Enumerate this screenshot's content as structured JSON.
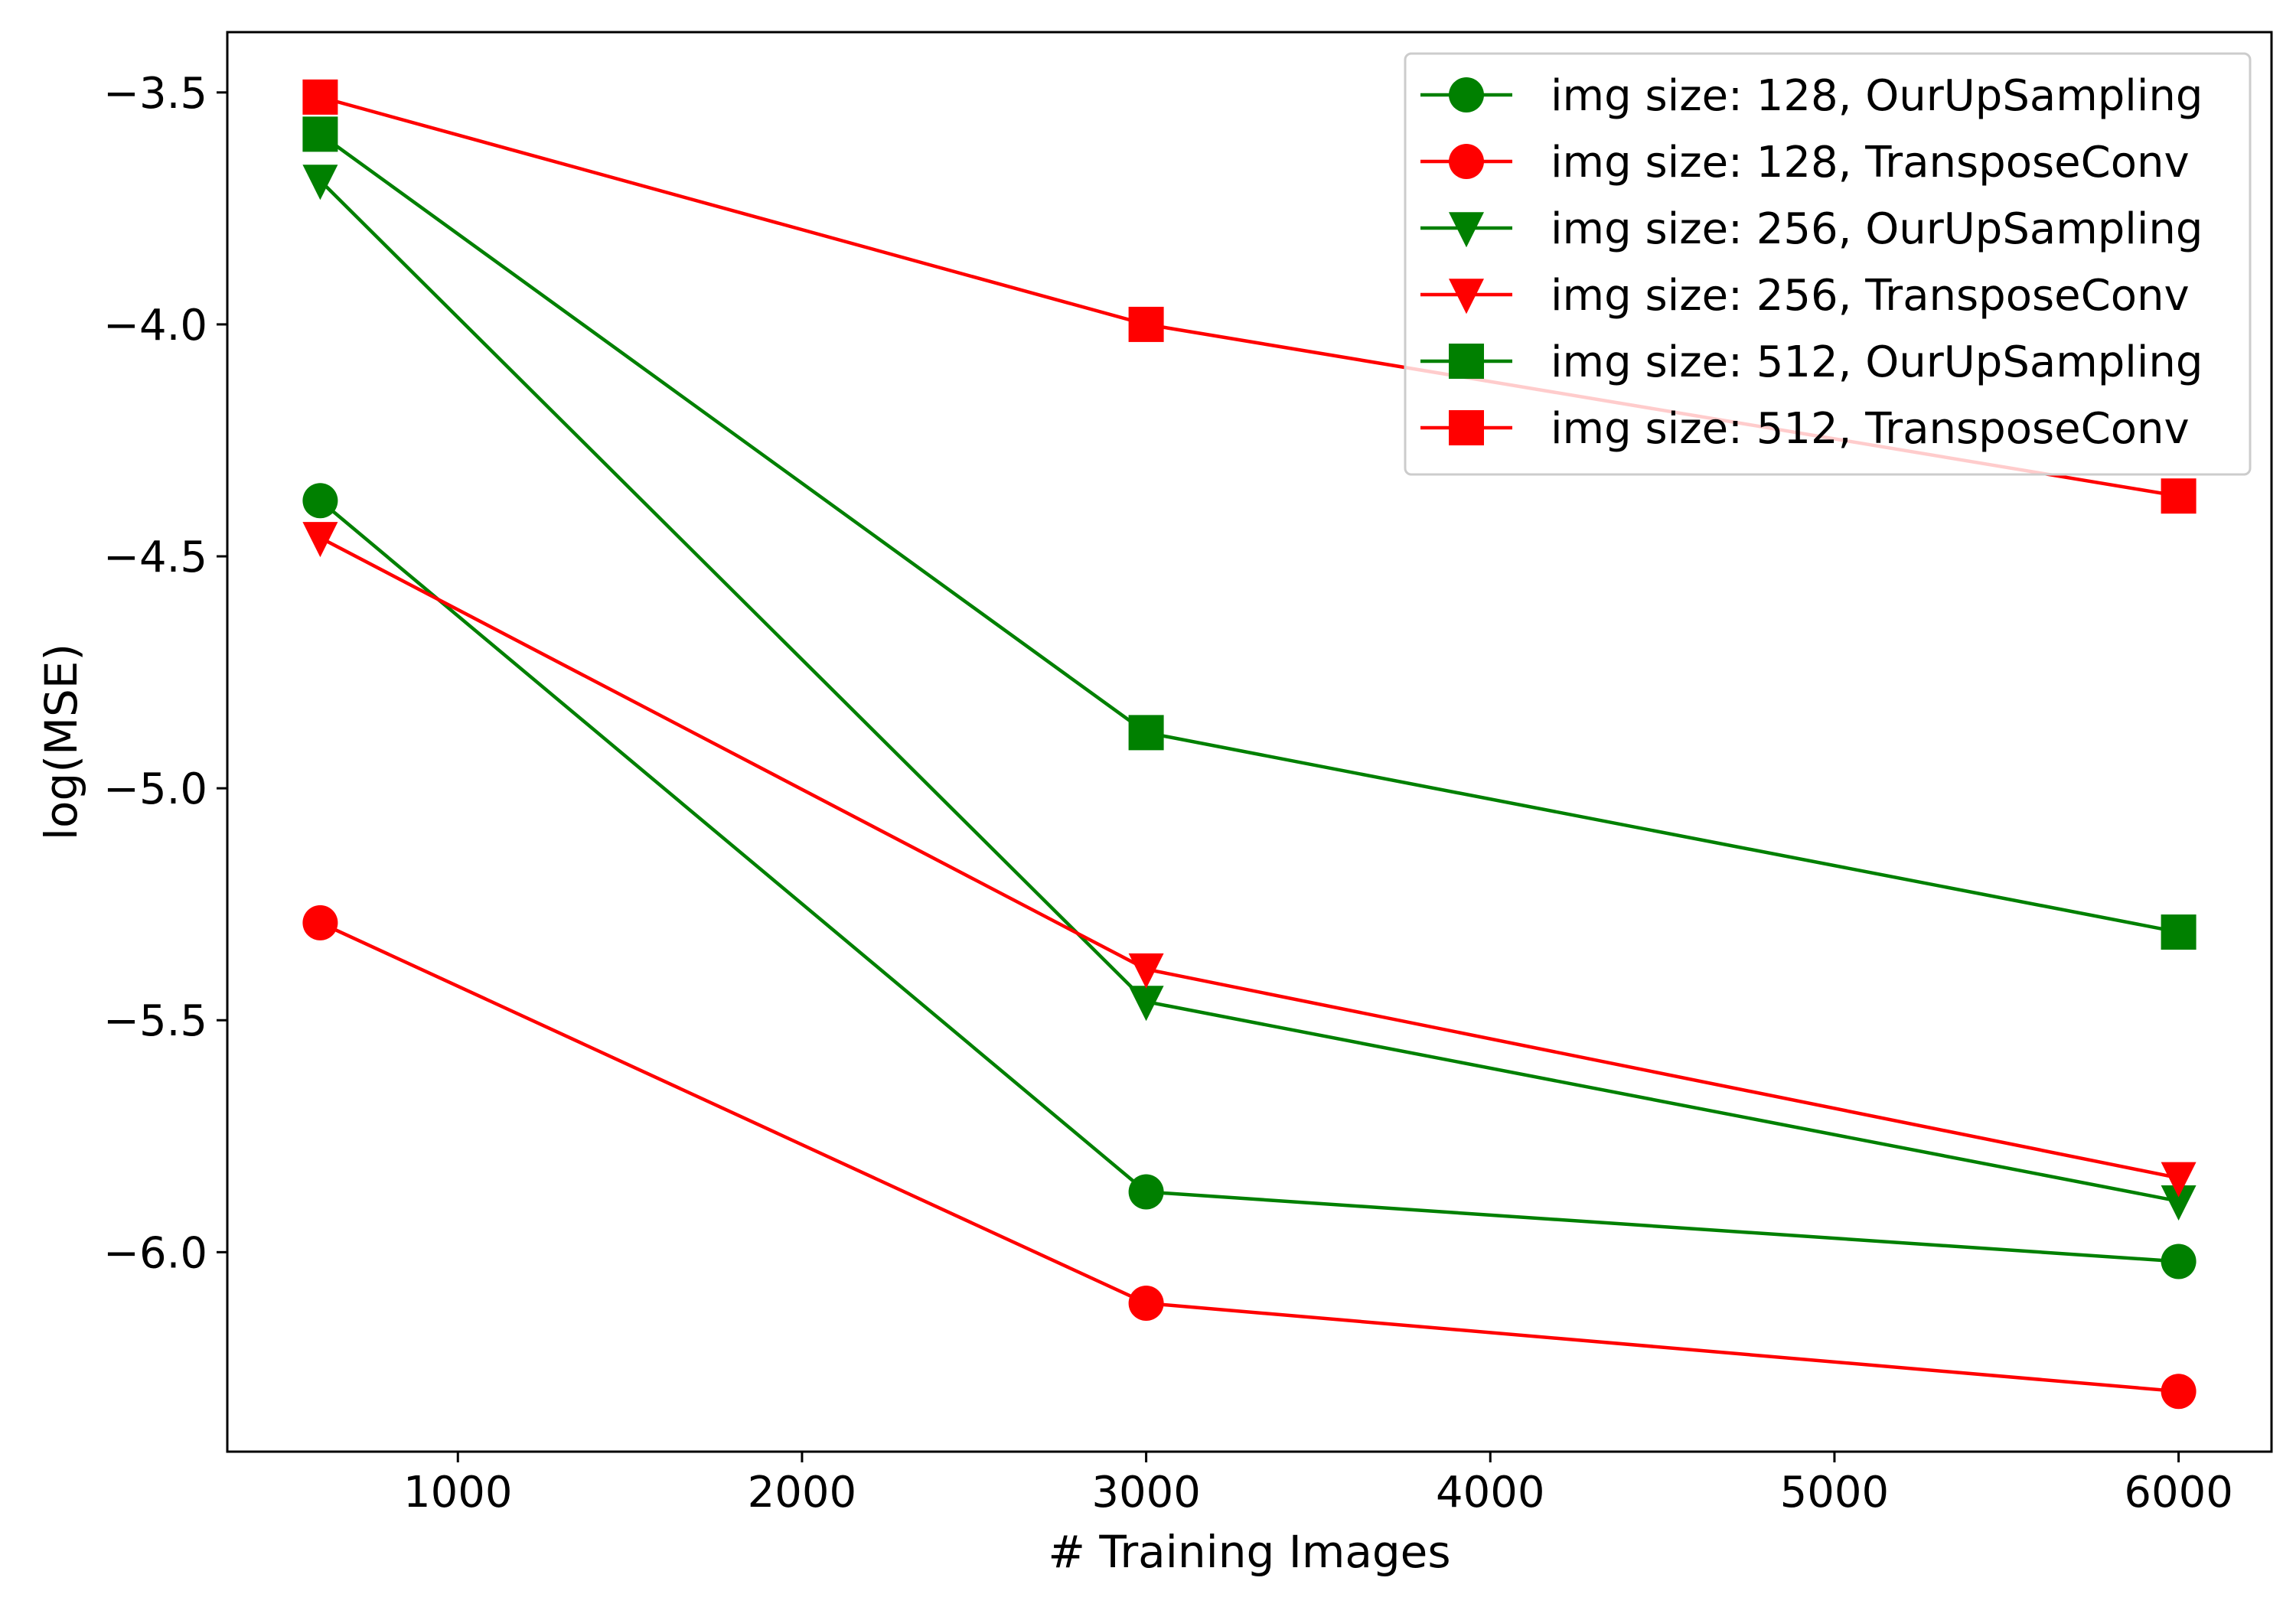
{
  "chart_data": {
    "type": "line",
    "xlabel": "# Training Images",
    "ylabel": "log(MSE)",
    "xlim": [
      330,
      6270
    ],
    "ylim": [
      -6.43,
      -3.37
    ],
    "xticks": [
      1000,
      2000,
      3000,
      4000,
      5000,
      6000
    ],
    "xtick_labels": [
      "1000",
      "2000",
      "3000",
      "4000",
      "5000",
      "6000"
    ],
    "yticks": [
      -3.5,
      -4.0,
      -4.5,
      -5.0,
      -5.5,
      -6.0
    ],
    "ytick_labels": [
      "−3.5",
      "−4.0",
      "−4.5",
      "−5.0",
      "−5.5",
      "−6.0"
    ],
    "grid": false,
    "legend_position": "top-right",
    "x": [
      600,
      3000,
      6000
    ],
    "series": [
      {
        "name": "img size: 128, OurUpSampling",
        "color": "#008000",
        "marker": "circle",
        "values": [
          -4.38,
          -5.87,
          -6.02
        ]
      },
      {
        "name": "img size: 128, TransposeConv",
        "color": "#ff0000",
        "marker": "circle",
        "values": [
          -5.29,
          -6.11,
          -6.3
        ]
      },
      {
        "name": "img size: 256, OurUpSampling",
        "color": "#008000",
        "marker": "triangle-down",
        "values": [
          -3.69,
          -5.46,
          -5.89
        ]
      },
      {
        "name": "img size: 256, TransposeConv",
        "color": "#ff0000",
        "marker": "triangle-down",
        "values": [
          -4.46,
          -5.39,
          -5.84
        ]
      },
      {
        "name": "img size: 512, OurUpSampling",
        "color": "#008000",
        "marker": "square",
        "values": [
          -3.59,
          -4.88,
          -5.31
        ]
      },
      {
        "name": "img size: 512, TransposeConv",
        "color": "#ff0000",
        "marker": "square",
        "values": [
          -3.51,
          -4.0,
          -4.37
        ]
      }
    ]
  }
}
